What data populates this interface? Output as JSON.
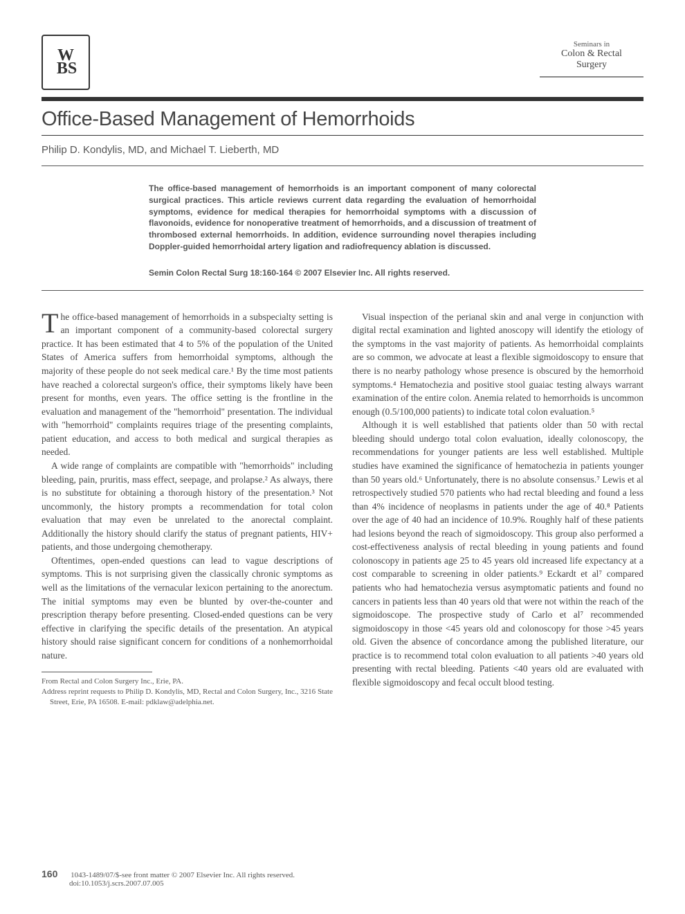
{
  "logo": "W\nBS",
  "journal": {
    "line1": "Seminars in",
    "line2": "Colon & Rectal",
    "line3": "Surgery"
  },
  "title": "Office-Based Management of Hemorrhoids",
  "authors": "Philip D. Kondylis, MD, and Michael T. Lieberth, MD",
  "abstract": "The office-based management of hemorrhoids is an important component of many colorectal surgical practices. This article reviews current data regarding the evaluation of hemorrhoidal symptoms, evidence for medical therapies for hemorrhoidal symptoms with a discussion of flavonoids, evidence for nonoperative treatment of hemorrhoids, and a discussion of treatment of thrombosed external hemorrhoids. In addition, evidence surrounding novel therapies including Doppler-guided hemorrhoidal artery ligation and radiofrequency ablation is discussed.",
  "citation": "Semin Colon Rectal Surg 18:160-164 © 2007 Elsevier Inc. All rights reserved.",
  "col1": {
    "p1_dropcap": "T",
    "p1": "he office-based management of hemorrhoids in a subspecialty setting is an important component of a community-based colorectal surgery practice. It has been estimated that 4 to 5% of the population of the United States of America suffers from hemorrhoidal symptoms, although the majority of these people do not seek medical care.¹ By the time most patients have reached a colorectal surgeon's office, their symptoms likely have been present for months, even years. The office setting is the frontline in the evaluation and management of the \"hemorrhoid\" presentation. The individual with \"hemorrhoid\" complaints requires triage of the presenting complaints, patient education, and access to both medical and surgical therapies as needed.",
    "p2": "A wide range of complaints are compatible with \"hemorrhoids\" including bleeding, pain, pruritis, mass effect, seepage, and prolapse.² As always, there is no substitute for obtaining a thorough history of the presentation.³ Not uncommonly, the history prompts a recommendation for total colon evaluation that may even be unrelated to the anorectal complaint. Additionally the history should clarify the status of pregnant patients, HIV+ patients, and those undergoing chemotherapy.",
    "p3": "Oftentimes, open-ended questions can lead to vague descriptions of symptoms. This is not surprising given the classically chronic symptoms as well as the limitations of the vernacular lexicon pertaining to the anorectum. The initial symptoms may even be blunted by over-the-counter and prescription therapy before presenting. Closed-ended questions can be very effective in clarifying the specific details of the presentation. An atypical history should raise significant concern for conditions of a nonhemorrhoidal nature."
  },
  "col2": {
    "p1": "Visual inspection of the perianal skin and anal verge in conjunction with digital rectal examination and lighted anoscopy will identify the etiology of the symptoms in the vast majority of patients. As hemorrhoidal complaints are so common, we advocate at least a flexible sigmoidoscopy to ensure that there is no nearby pathology whose presence is obscured by the hemorrhoid symptoms.⁴ Hematochezia and positive stool guaiac testing always warrant examination of the entire colon. Anemia related to hemorrhoids is uncommon enough (0.5/100,000 patients) to indicate total colon evaluation.⁵",
    "p2": "Although it is well established that patients older than 50 with rectal bleeding should undergo total colon evaluation, ideally colonoscopy, the recommendations for younger patients are less well established. Multiple studies have examined the significance of hematochezia in patients younger than 50 years old.⁶ Unfortunately, there is no absolute consensus.⁷ Lewis et al retrospectively studied 570 patients who had rectal bleeding and found a less than 4% incidence of neoplasms in patients under the age of 40.⁸ Patients over the age of 40 had an incidence of 10.9%. Roughly half of these patients had lesions beyond the reach of sigmoidoscopy. This group also performed a cost-effectiveness analysis of rectal bleeding in young patients and found colonoscopy in patients age 25 to 45 years old increased life expectancy at a cost comparable to screening in older patients.⁹ Eckardt et al⁷ compared patients who had hematochezia versus asymptomatic patients and found no cancers in patients less than 40 years old that were not within the reach of the sigmoidoscope. The prospective study of Carlo et al⁷ recommended sigmoidoscopy in those <45 years old and colonoscopy for those >45 years old. Given the absence of concordance among the published literature, our practice is to recommend total colon evaluation to all patients >40 years old presenting with rectal bleeding. Patients <40 years old are evaluated with flexible sigmoidoscopy and fecal occult blood testing."
  },
  "footnotes": {
    "f1": "From Rectal and Colon Surgery Inc., Erie, PA.",
    "f2": "Address reprint requests to Philip D. Kondylis, MD, Rectal and Colon Surgery, Inc., 3216 State Street, Erie, PA 16508. E-mail: pdklaw@adelphia.net."
  },
  "footer": {
    "page": "160",
    "copyright": "1043-1489/07/$-see front matter © 2007 Elsevier Inc. All rights reserved.",
    "doi": "doi:10.1053/j.scrs.2007.07.005"
  }
}
